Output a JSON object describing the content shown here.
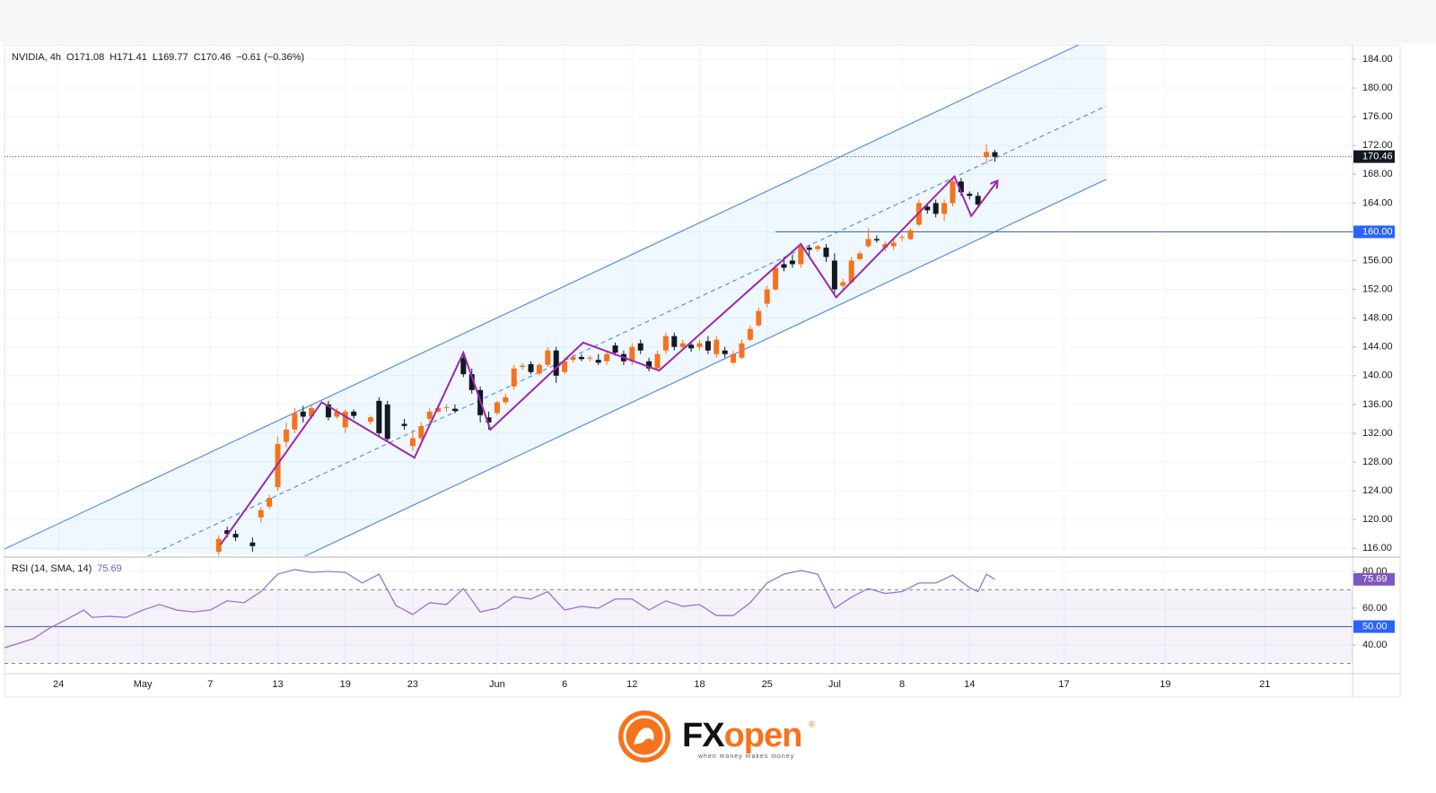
{
  "chart_data": [
    {
      "type": "candlestick",
      "title": "NVIDIA, 4h",
      "legend_values": [
        "O171.08",
        "H171.41",
        "L169.77",
        "C170.46",
        "−0.61 (−0.36%)"
      ],
      "up_color": "#f5731c",
      "down_color": "#131722",
      "x": [
        9.5,
        10,
        10.5,
        11.5,
        12,
        12.5,
        13,
        13.5,
        14,
        14.5,
        15,
        16,
        16.5,
        17,
        17.5,
        18.5,
        19,
        19.5,
        20.5,
        21,
        21.5,
        22,
        22.5,
        23,
        23.5,
        24,
        24.5,
        25,
        25.5,
        26,
        26.5,
        27,
        27.5,
        28,
        28.5,
        29,
        29.5,
        30,
        30.5,
        31,
        31.5,
        32,
        32.5,
        33,
        33.5,
        34,
        34.5,
        35,
        35.5,
        36,
        36.5,
        37,
        37.5,
        38,
        38.5,
        39,
        39.5,
        40,
        40.5,
        41,
        41.5,
        42,
        42.5,
        43,
        43.5,
        44,
        44.5,
        45,
        45.5,
        46,
        46.5,
        47,
        47.5,
        48,
        48.5,
        49,
        49.5,
        50,
        50.5,
        51,
        51.5,
        52,
        52.5,
        53,
        53.5,
        54,
        54.5,
        55,
        55.5
      ],
      "open": [
        115.5,
        118.5,
        118,
        116.8,
        120.3,
        121.8,
        124.5,
        130.8,
        132.5,
        135,
        134.3,
        136,
        134.3,
        132.8,
        135,
        133.6,
        136.5,
        136,
        133.3,
        130.2,
        131.3,
        134,
        135,
        135.5,
        135.4,
        142.5,
        140.2,
        138,
        134.2,
        134.8,
        136.3,
        138.5,
        141.2,
        141.6,
        140.3,
        141.5,
        143.5,
        140.5,
        142.2,
        142.6,
        142.4,
        142.2,
        142,
        144.2,
        143,
        142,
        144.5,
        142,
        141,
        143.5,
        145.5,
        144,
        144.3,
        144,
        144.8,
        143,
        143.5,
        141.8,
        142.5,
        145,
        147,
        150,
        152,
        155.5,
        156,
        155.5,
        157.8,
        157.6,
        157.8,
        156,
        152.5,
        153,
        156.2,
        158,
        159,
        157.8,
        158,
        159.2,
        159,
        161,
        163.5,
        164,
        162.5,
        164,
        167,
        165.3,
        165,
        170.4,
        171.08
      ],
      "high": [
        117.8,
        119,
        118.5,
        117.5,
        121.8,
        123.5,
        131.5,
        133.5,
        135.5,
        135.8,
        136,
        136.5,
        135.5,
        135.3,
        135.3,
        134.5,
        137,
        136.5,
        134,
        132.5,
        133.5,
        135.5,
        136,
        136,
        136,
        143,
        141,
        138.5,
        135,
        136.5,
        137.5,
        141.5,
        141.8,
        142,
        141.8,
        144,
        144,
        142.5,
        143,
        143,
        142.8,
        143,
        143.5,
        144.6,
        143.5,
        144.5,
        145,
        142.5,
        143.5,
        146,
        146,
        145,
        144.8,
        145,
        145.5,
        145.5,
        144,
        143.5,
        145,
        147,
        149.5,
        152.5,
        155.5,
        156.5,
        156.8,
        158.5,
        158.2,
        158.2,
        158.3,
        157,
        153.5,
        156.5,
        157.3,
        160.5,
        159.5,
        158.7,
        159,
        159.6,
        160.5,
        164.5,
        164,
        164.5,
        164.5,
        167.5,
        167.5,
        165.6,
        165.5,
        172.2,
        171.41
      ],
      "low": [
        115,
        117.5,
        117,
        115.5,
        119.5,
        121.5,
        124,
        130,
        132,
        133.5,
        134,
        133.8,
        134,
        132,
        134,
        133.2,
        131.5,
        130.8,
        132.5,
        129.5,
        131,
        133.5,
        134.8,
        135,
        134.8,
        139.8,
        137.5,
        133.5,
        132.5,
        134.5,
        136,
        138,
        140.8,
        140.2,
        140,
        141.2,
        139,
        140.2,
        141.8,
        142,
        142,
        141.5,
        141.5,
        142.8,
        141.5,
        141.5,
        143,
        140.6,
        140.8,
        143,
        143.5,
        143.5,
        143.3,
        143.5,
        143,
        142.5,
        142.5,
        141.5,
        142.3,
        144.8,
        146.8,
        149.5,
        151.8,
        154.5,
        155,
        155,
        156.5,
        157.2,
        155.8,
        151.5,
        151.8,
        152.8,
        156,
        157.8,
        158.5,
        157.3,
        157.5,
        158.7,
        158.8,
        160.8,
        162.5,
        162,
        161.5,
        163.5,
        165,
        164.5,
        163.3,
        169.4,
        169.77
      ],
      "close": [
        117.3,
        118,
        117.5,
        116.3,
        121.3,
        123,
        130.5,
        132.5,
        134.8,
        134.3,
        135.5,
        134.2,
        135,
        135,
        134.4,
        134.2,
        132,
        131.2,
        133,
        131.3,
        133,
        135,
        135.5,
        135.6,
        135.1,
        140.2,
        138,
        134.5,
        133.5,
        136.3,
        137,
        141,
        141.4,
        140.5,
        141.5,
        143.5,
        140,
        142,
        142.6,
        142.3,
        142.5,
        141.8,
        143,
        143.2,
        142,
        144,
        143.5,
        141,
        143,
        145.5,
        144,
        144.5,
        143.8,
        144.5,
        143.5,
        145,
        143,
        143,
        144.5,
        146.5,
        149,
        152,
        155,
        155,
        155.5,
        158,
        157.5,
        158,
        156.5,
        152,
        153,
        156,
        157,
        159,
        158.8,
        158.3,
        158.5,
        159.3,
        160.2,
        164,
        163,
        162.5,
        164,
        167,
        165.5,
        165,
        163.8,
        171.1,
        170.46
      ],
      "xlim": [
        -3.2,
        76.7
      ],
      "ylim": [
        114.9,
        186
      ],
      "yticks": [
        {
          "value": 116,
          "label": "116.00"
        },
        {
          "value": 120,
          "label": "120.00"
        },
        {
          "value": 124,
          "label": "124.00"
        },
        {
          "value": 128,
          "label": "128.00"
        },
        {
          "value": 132,
          "label": "132.00"
        },
        {
          "value": 136,
          "label": "136.00"
        },
        {
          "value": 140,
          "label": "140.00"
        },
        {
          "value": 144,
          "label": "144.00"
        },
        {
          "value": 148,
          "label": "148.00"
        },
        {
          "value": 152,
          "label": "152.00"
        },
        {
          "value": 156,
          "label": "156.00"
        },
        {
          "value": 160,
          "label": "160.00"
        },
        {
          "value": 164,
          "label": "164.00"
        },
        {
          "value": 168,
          "label": "168.00"
        },
        {
          "value": 172,
          "label": "172.00"
        },
        {
          "value": 176,
          "label": "176.00"
        },
        {
          "value": 180,
          "label": "180.00"
        },
        {
          "value": 184,
          "label": "184.00"
        }
      ],
      "level": {
        "value": 160,
        "label": "160.00",
        "from": 42.5,
        "color": "#4a6fa5"
      },
      "channel": {
        "color": "#5b8fe0",
        "fill": "rgba(33,150,243,0.07)",
        "end": 62.1,
        "upper": {
          "x": [
            -3.2,
            62.1
          ],
          "y": [
            115.9,
            187.8
          ]
        },
        "middle": {
          "x": [
            5.3,
            62.1
          ],
          "y": [
            114.9,
            177.5
          ]
        },
        "lower": {
          "x": [
            14.6,
            62.1
          ],
          "y": [
            114.9,
            167.3
          ]
        }
      },
      "zigzag": {
        "color": "#9c27b0",
        "x": [
          9.6,
          15.6,
          21.1,
          24.0,
          25.6,
          31.1,
          35.6,
          44.0,
          46.1,
          53.1,
          54.1,
          55.6
        ],
        "y": [
          116.5,
          136.3,
          128.6,
          143.2,
          132.5,
          144.6,
          140.7,
          158.3,
          150.9,
          167.7,
          162.2,
          166.9
        ]
      }
    },
    {
      "type": "line",
      "title": "RSI (14, SMA, 14)",
      "color": "#9575cd",
      "x": [
        -3.2,
        -2.5,
        -1.5,
        -0.5,
        0.5,
        1.5,
        2,
        3,
        4,
        5,
        6,
        7,
        8,
        9,
        10,
        11,
        12,
        13,
        14,
        15,
        16,
        17,
        18,
        19,
        20,
        21,
        22,
        23,
        24,
        25,
        26,
        27,
        28,
        29,
        30,
        31,
        32,
        33,
        34,
        35,
        36,
        37,
        38,
        39,
        40,
        41,
        42,
        43,
        44,
        45,
        46,
        47,
        48,
        49,
        50,
        51,
        52,
        53,
        54,
        54.5,
        55,
        55.5
      ],
      "values": [
        38.5,
        40.5,
        43.4,
        49.3,
        54,
        59,
        55,
        55.6,
        55,
        59,
        62,
        59,
        58,
        59,
        64,
        63,
        69,
        78.5,
        81,
        79.5,
        80,
        79.5,
        73.7,
        78.5,
        61.5,
        56.6,
        63,
        62,
        70.7,
        58,
        60,
        66.3,
        65,
        69,
        59,
        61,
        60,
        65,
        65,
        59,
        64,
        61,
        62,
        56,
        56,
        63,
        73.7,
        78.5,
        80.5,
        78.5,
        60,
        66,
        70.7,
        68,
        69,
        73.7,
        73.7,
        78,
        71.2,
        69,
        78.5,
        75.69
      ],
      "xlim": [
        -3.2,
        76.7
      ],
      "ylim": [
        24.9,
        87.3
      ],
      "yticks": [
        {
          "value": 40,
          "label": "40.00"
        },
        {
          "value": 60,
          "label": "60.00"
        },
        {
          "value": 80,
          "label": "80.00"
        }
      ],
      "bands": [
        70,
        30
      ],
      "midline": {
        "value": 50,
        "label": "50.00",
        "color": "#5c6bc0"
      },
      "xticks": [
        {
          "value": 0,
          "label": "24"
        },
        {
          "value": 5,
          "label": "May"
        },
        {
          "value": 9,
          "label": "7"
        },
        {
          "value": 13,
          "label": "13"
        },
        {
          "value": 17,
          "label": "19"
        },
        {
          "value": 21,
          "label": "23"
        },
        {
          "value": 26,
          "label": "Jun"
        },
        {
          "value": 30,
          "label": "6"
        },
        {
          "value": 34,
          "label": "12"
        },
        {
          "value": 38,
          "label": "18"
        },
        {
          "value": 42,
          "label": "25"
        },
        {
          "value": 46,
          "label": "Jul"
        },
        {
          "value": 50,
          "label": "8"
        },
        {
          "value": 54,
          "label": "14"
        },
        {
          "value": 59.6,
          "label": "17"
        },
        {
          "value": 65.6,
          "label": "19"
        },
        {
          "value": 71.5,
          "label": "21"
        }
      ]
    }
  ],
  "brand": {
    "name_a": "FX",
    "name_b": "open",
    "mark": "®",
    "tagline": "when money makes money"
  }
}
